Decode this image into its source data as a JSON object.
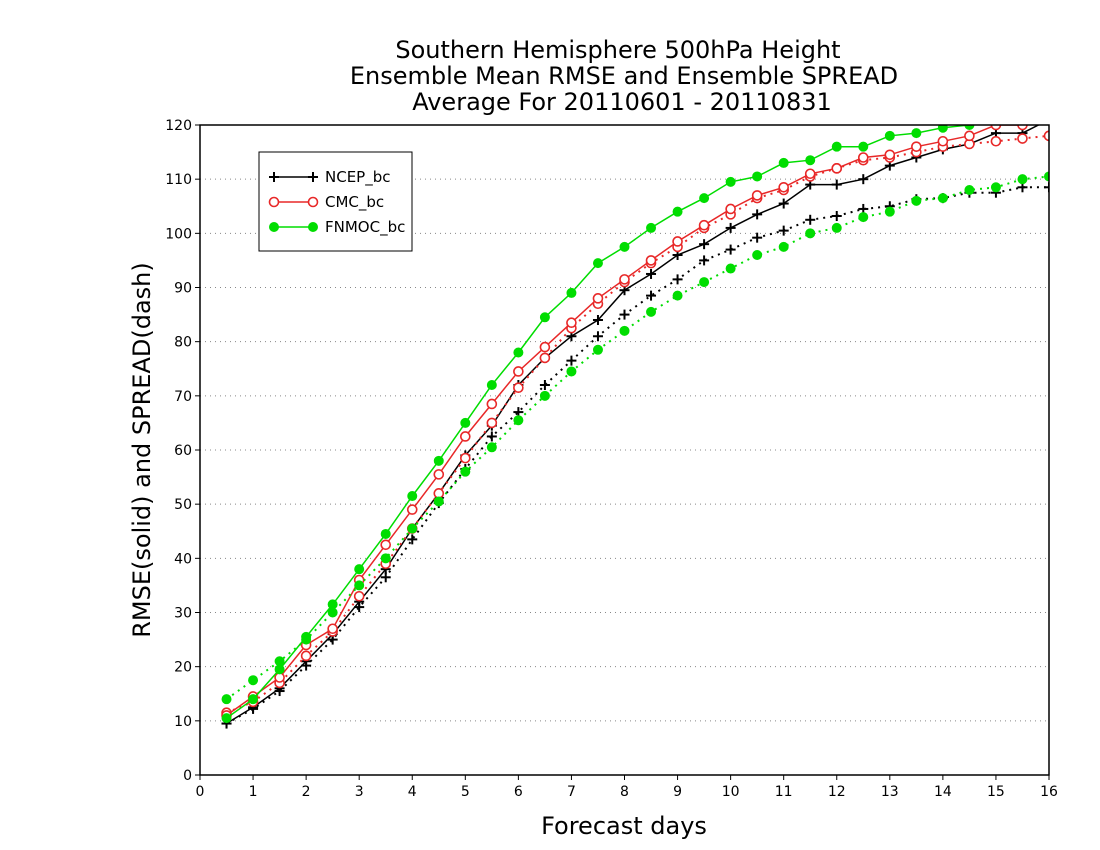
{
  "chart_data": {
    "type": "line",
    "title_lines": [
      "Southern Hemisphere 500hPa Height",
      "Ensemble Mean RMSE and Ensemble SPREAD",
      "Average For 20110601 - 20110831"
    ],
    "xlabel": "Forecast days",
    "ylabel": "RMSE(solid) and SPREAD(dash)",
    "xlim": [
      0,
      16
    ],
    "ylim": [
      0,
      120
    ],
    "xticks": [
      "0",
      "1",
      "2",
      "3",
      "4",
      "5",
      "6",
      "7",
      "8",
      "9",
      "10",
      "11",
      "12",
      "13",
      "14",
      "15",
      "16"
    ],
    "yticks": [
      "0",
      "10",
      "20",
      "30",
      "40",
      "50",
      "60",
      "70",
      "80",
      "90",
      "100",
      "110",
      "120"
    ],
    "grid": "horizontal dotted",
    "legend_position": "top-left",
    "x": [
      0.5,
      1,
      1.5,
      2,
      2.5,
      3,
      3.5,
      4,
      4.5,
      5,
      5.5,
      6,
      6.5,
      7,
      7.5,
      8,
      8.5,
      9,
      9.5,
      10,
      10.5,
      11,
      11.5,
      12,
      12.5,
      13,
      13.5,
      14,
      14.5,
      15,
      15.5,
      16
    ],
    "series": [
      {
        "name": "NCEP_bc",
        "color": "#000000",
        "marker": "plus",
        "rmse": [
          9.5,
          12.5,
          16,
          21,
          26,
          32,
          38,
          45.5,
          52,
          59,
          64.5,
          72,
          77,
          81,
          84,
          89.5,
          92.5,
          96,
          98,
          101,
          103.5,
          105.5,
          109,
          109,
          110,
          112.5,
          114,
          115.5,
          116.5,
          118.5,
          118.5,
          121
        ],
        "spread": [
          9.5,
          12.2,
          15.5,
          20.2,
          25,
          31,
          36.5,
          43.5,
          50.2,
          56.5,
          62.5,
          67,
          72,
          76.5,
          81,
          85,
          88.5,
          91.5,
          95,
          97,
          99.2,
          100.5,
          102.5,
          103.2,
          104.5,
          105,
          106.3,
          106.5,
          107.5,
          107.5,
          108.5,
          108.5
        ]
      },
      {
        "name": "CMC_bc",
        "color": "#e82828",
        "marker": "circle",
        "rmse": [
          11,
          14.5,
          18,
          24,
          27,
          36,
          42.5,
          49,
          55.5,
          62.5,
          68.5,
          74.5,
          79,
          83.5,
          88,
          91.5,
          95,
          98.5,
          101.5,
          104.5,
          107,
          108.5,
          111,
          112,
          114,
          114.5,
          116,
          117,
          118,
          120,
          120,
          122
        ],
        "spread": [
          11.5,
          13.5,
          17,
          22,
          26.5,
          33,
          39,
          45.5,
          52,
          58.5,
          65,
          71.5,
          77,
          82.5,
          87,
          91,
          94.5,
          97.5,
          101,
          103.5,
          106.5,
          108,
          110.5,
          112,
          113.5,
          114,
          115,
          116,
          116.5,
          117,
          117.5,
          118
        ]
      },
      {
        "name": "FNMOC_bc",
        "color": "#00dd00",
        "marker": "dot",
        "rmse": [
          10.5,
          14,
          19.5,
          25.5,
          31.5,
          38,
          44.5,
          51.5,
          58,
          65,
          72,
          78,
          84.5,
          89,
          94.5,
          97.5,
          101,
          104,
          106.5,
          109.5,
          110.5,
          113,
          113.5,
          116,
          116,
          118,
          118.5,
          119.5,
          120,
          121,
          122,
          123
        ],
        "spread": [
          14,
          17.5,
          21,
          25,
          30,
          35,
          40,
          45.5,
          50.5,
          56,
          60.5,
          65.5,
          70,
          74.5,
          78.5,
          82,
          85.5,
          88.5,
          91,
          93.5,
          96,
          97.5,
          100,
          101,
          103,
          104,
          106,
          106.5,
          108,
          108.5,
          110,
          110.5
        ]
      }
    ]
  }
}
